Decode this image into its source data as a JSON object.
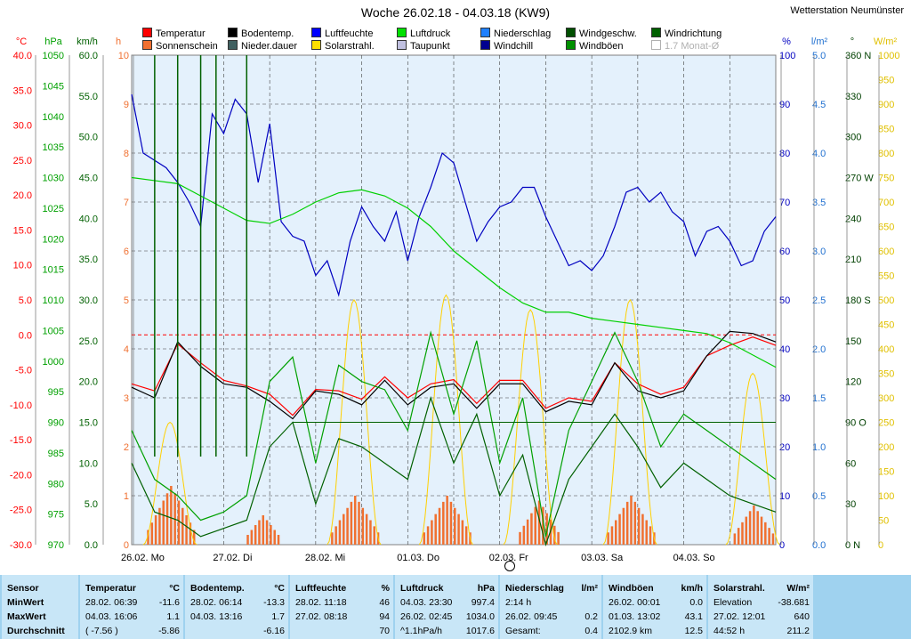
{
  "title": "Woche 26.02.18 - 04.03.18 (KW9)",
  "station": "Wetterstation Neumünster",
  "legend": [
    {
      "label": "Temperatur",
      "color": "#ff0000"
    },
    {
      "label": "Sonnenschein",
      "color": "#f07030"
    },
    {
      "label": "Bodentemp.",
      "color": "#000000"
    },
    {
      "label": "Nieder.dauer",
      "color": "#406060"
    },
    {
      "label": "Luftfeuchte",
      "color": "#0000ff"
    },
    {
      "label": "Solarstrahl.",
      "color": "#ffe000"
    },
    {
      "label": "Luftdruck",
      "color": "#00e000"
    },
    {
      "label": "Taupunkt",
      "color": "#c0c0e0"
    },
    {
      "label": "Niederschlag",
      "color": "#2080ff"
    },
    {
      "label": "Windchill",
      "color": "#000090"
    },
    {
      "label": "Windgeschw.",
      "color": "#005000"
    },
    {
      "label": "Windböen",
      "color": "#009000"
    },
    {
      "label": "Windrichtung",
      "color": "#006000"
    },
    {
      "label": "1.7 Monat-Ø",
      "color": "#ffffff"
    }
  ],
  "axes": {
    "temp": {
      "unit": "°C",
      "ticks": [
        "40.0",
        "35.0",
        "30.0",
        "25.0",
        "20.0",
        "15.0",
        "10.0",
        "5.0",
        "0.0",
        "-5.0",
        "-10.0",
        "-15.0",
        "-20.0",
        "-25.0",
        "-30.0"
      ]
    },
    "pressure": {
      "unit": "hPa",
      "ticks": [
        "1050",
        "1045",
        "1040",
        "1035",
        "1030",
        "1025",
        "1020",
        "1015",
        "1010",
        "1005",
        "1000",
        "995",
        "990",
        "985",
        "980",
        "975",
        "970"
      ]
    },
    "wind": {
      "unit": "km/h",
      "ticks": [
        "60.0",
        "55.0",
        "50.0",
        "45.0",
        "40.0",
        "35.0",
        "30.0",
        "25.0",
        "20.0",
        "15.0",
        "10.0",
        "5.0",
        "0.0"
      ]
    },
    "hours": {
      "unit": "h",
      "ticks": [
        "10",
        "9",
        "8",
        "7",
        "6",
        "5",
        "4",
        "3",
        "2",
        "1",
        "0"
      ]
    },
    "humidity": {
      "unit": "%",
      "ticks": [
        "100",
        "90",
        "80",
        "70",
        "60",
        "50",
        "40",
        "30",
        "20",
        "10",
        "0"
      ]
    },
    "rain": {
      "unit": "l/m²",
      "ticks": [
        "5.0",
        "4.5",
        "4.0",
        "3.5",
        "3.0",
        "2.5",
        "2.0",
        "1.5",
        "1.0",
        "0.5",
        "0.0"
      ]
    },
    "direction": {
      "unit": "°",
      "ticks": [
        "360 N",
        "330",
        "300",
        "270 W",
        "240",
        "210",
        "180 S",
        "150",
        "120",
        "90 O",
        "60",
        "30",
        "0 N"
      ]
    },
    "solar": {
      "unit": "W/m²",
      "ticks": [
        "1000",
        "950",
        "900",
        "850",
        "800",
        "750",
        "700",
        "650",
        "600",
        "550",
        "500",
        "450",
        "400",
        "350",
        "300",
        "250",
        "200",
        "150",
        "100",
        "50",
        "0"
      ]
    }
  },
  "days": [
    "26.02.  Mo",
    "27.02.  Di",
    "28.02.  Mi",
    "01.03.  Do",
    "02.03.  Fr",
    "03.03.  Sa",
    "04.03.  So"
  ],
  "chart_data": {
    "type": "line",
    "x_unit": "hour of week",
    "series": [
      {
        "name": "Temperatur",
        "color": "#ff0000",
        "axis": "temp",
        "x": [
          0,
          6,
          12,
          18,
          24,
          30,
          36,
          42,
          48,
          54,
          60,
          66,
          72,
          78,
          84,
          90,
          96,
          102,
          108,
          114,
          120,
          126,
          132,
          138,
          144,
          150,
          156,
          162,
          168
        ],
        "y": [
          -7.0,
          -8.0,
          -1.3,
          -4.0,
          -6.5,
          -7.3,
          -8.5,
          -11.5,
          -7.8,
          -8.0,
          -9.2,
          -6.0,
          -9.0,
          -7.0,
          -6.4,
          -9.8,
          -6.5,
          -6.5,
          -10.5,
          -9.0,
          -9.5,
          -4.0,
          -7.0,
          -8.5,
          -7.5,
          -3.0,
          -1.5,
          -0.3,
          -1.5
        ]
      },
      {
        "name": "Bodentemp.",
        "color": "#000000",
        "axis": "temp",
        "x": [
          0,
          6,
          12,
          18,
          24,
          30,
          36,
          42,
          48,
          54,
          60,
          66,
          72,
          78,
          84,
          90,
          96,
          102,
          108,
          114,
          120,
          126,
          132,
          138,
          144,
          150,
          156,
          162,
          168
        ],
        "y": [
          -7.5,
          -9.0,
          -1.0,
          -4.5,
          -7.0,
          -7.5,
          -9.5,
          -12.0,
          -8.0,
          -8.5,
          -10.0,
          -6.5,
          -10.0,
          -7.5,
          -7.0,
          -10.5,
          -7.0,
          -7.0,
          -11.0,
          -9.5,
          -10.0,
          -4.0,
          -8.0,
          -9.0,
          -8.0,
          -3.0,
          0.5,
          0.2,
          -1.0
        ]
      },
      {
        "name": "Luftfeuchte",
        "color": "#0000c0",
        "axis": "humidity",
        "x": [
          0,
          3,
          9,
          12,
          15,
          18,
          21,
          24,
          27,
          30,
          33,
          36,
          39,
          42,
          45,
          48,
          51,
          54,
          57,
          60,
          63,
          66,
          69,
          72,
          75,
          78,
          81,
          84,
          87,
          90,
          93,
          96,
          99,
          102,
          105,
          108,
          111,
          114,
          117,
          120,
          123,
          126,
          129,
          132,
          135,
          138,
          141,
          144,
          147,
          150,
          153,
          156,
          159,
          162,
          165,
          168
        ],
        "y": [
          92,
          80,
          77,
          74,
          70,
          65,
          88,
          84,
          91,
          88,
          74,
          86,
          66,
          63,
          62,
          55,
          58,
          51,
          62,
          69,
          65,
          62,
          68,
          58,
          67,
          73,
          80,
          78,
          70,
          62,
          66,
          69,
          70,
          73,
          73,
          67,
          62,
          57,
          58,
          56,
          59,
          65,
          72,
          73,
          70,
          72,
          68,
          66,
          59,
          64,
          65,
          62,
          57,
          58,
          64,
          67
        ]
      },
      {
        "name": "Luftdruck",
        "color": "#00d000",
        "axis": "pressure",
        "x": [
          0,
          6,
          12,
          18,
          24,
          30,
          36,
          42,
          48,
          54,
          60,
          66,
          72,
          78,
          84,
          90,
          96,
          102,
          108,
          114,
          120,
          126,
          132,
          138,
          144,
          150,
          156,
          162,
          168
        ],
        "y": [
          1030,
          1029.5,
          1029,
          1027,
          1025,
          1023,
          1022.5,
          1024,
          1026,
          1027.5,
          1028,
          1027,
          1025,
          1022,
          1018,
          1015,
          1012,
          1009.5,
          1008,
          1008,
          1007,
          1006.5,
          1006,
          1005.5,
          1005,
          1004.5,
          1003,
          1001,
          999
        ]
      },
      {
        "name": "Windgeschw.",
        "color": "#006000",
        "axis": "wind",
        "x": [
          0,
          6,
          12,
          18,
          24,
          30,
          36,
          42,
          48,
          54,
          60,
          66,
          72,
          78,
          84,
          90,
          96,
          102,
          108,
          114,
          120,
          126,
          132,
          138,
          144,
          150,
          156,
          162,
          168
        ],
        "y": [
          10,
          4,
          3,
          1,
          2,
          3,
          12,
          15,
          5,
          13,
          12,
          10,
          8,
          18,
          10,
          16,
          6,
          11,
          0,
          8,
          12,
          16,
          12,
          7,
          10,
          8,
          6,
          5,
          4
        ]
      },
      {
        "name": "Windböen",
        "color": "#00a000",
        "axis": "wind",
        "x": [
          0,
          6,
          12,
          18,
          24,
          30,
          36,
          42,
          48,
          54,
          60,
          66,
          72,
          78,
          84,
          90,
          96,
          102,
          108,
          114,
          120,
          126,
          132,
          138,
          144,
          150,
          156,
          162,
          168
        ],
        "y": [
          14,
          8,
          6,
          3,
          4,
          6,
          20,
          23,
          10,
          22,
          20,
          19,
          14,
          26,
          16,
          25,
          10,
          18,
          1,
          14,
          20,
          26,
          20,
          12,
          16,
          14,
          12,
          10,
          8
        ]
      }
    ],
    "solar_peaks": [
      {
        "x": 10,
        "y": 250
      },
      {
        "x": 58,
        "y": 500
      },
      {
        "x": 82,
        "y": 510
      },
      {
        "x": 104,
        "y": 480
      },
      {
        "x": 130,
        "y": 500
      },
      {
        "x": 162,
        "y": 350
      }
    ],
    "ylim_temp": [
      -30,
      40
    ]
  },
  "stats": {
    "columns": [
      {
        "title": "Sensor",
        "unit": "",
        "rows": [
          "MinWert",
          "MaxWert",
          "Durchschnitt"
        ],
        "a": [
          "",
          "",
          ""
        ],
        "b": [
          "",
          "",
          ""
        ]
      },
      {
        "title": "Temperatur",
        "unit": "°C",
        "a": [
          "28.02.  06:39",
          "04.03.  16:06",
          "( -7.56 )"
        ],
        "b": [
          "-11.6",
          "1.1",
          "-5.86"
        ]
      },
      {
        "title": "Bodentemp.",
        "unit": "°C",
        "a": [
          "28.02.  06:14",
          "04.03.  13:16",
          ""
        ],
        "b": [
          "-13.3",
          "1.7",
          "-6.16"
        ]
      },
      {
        "title": "Luftfeuchte",
        "unit": "%",
        "a": [
          "28.02.  11:18",
          "27.02.  08:18",
          ""
        ],
        "b": [
          "46",
          "94",
          "70"
        ]
      },
      {
        "title": "Luftdruck",
        "unit": "hPa",
        "a": [
          "04.03.  23:30",
          "26.02.  02:45",
          "^1.1hPa/h"
        ],
        "b": [
          "997.4",
          "1034.0",
          "1017.6"
        ]
      },
      {
        "title": "Niederschlag",
        "unit": "l/m²",
        "a": [
          "2:14 h",
          "26.02.  09:45",
          "Gesamt:"
        ],
        "b": [
          "",
          "0.2",
          "0.4"
        ]
      },
      {
        "title": "Windböen",
        "unit": "km/h",
        "a": [
          "26.02.  00:01",
          "01.03.  13:02",
          "2102.9 km"
        ],
        "b": [
          "0.0",
          "43.1",
          "12.5"
        ]
      },
      {
        "title": "Solarstrahl.",
        "unit": "W/m²",
        "a": [
          "Elevation",
          "27.02.  12:01",
          "44:52 h"
        ],
        "b": [
          "-38.681",
          "640",
          "211.2"
        ]
      }
    ]
  }
}
